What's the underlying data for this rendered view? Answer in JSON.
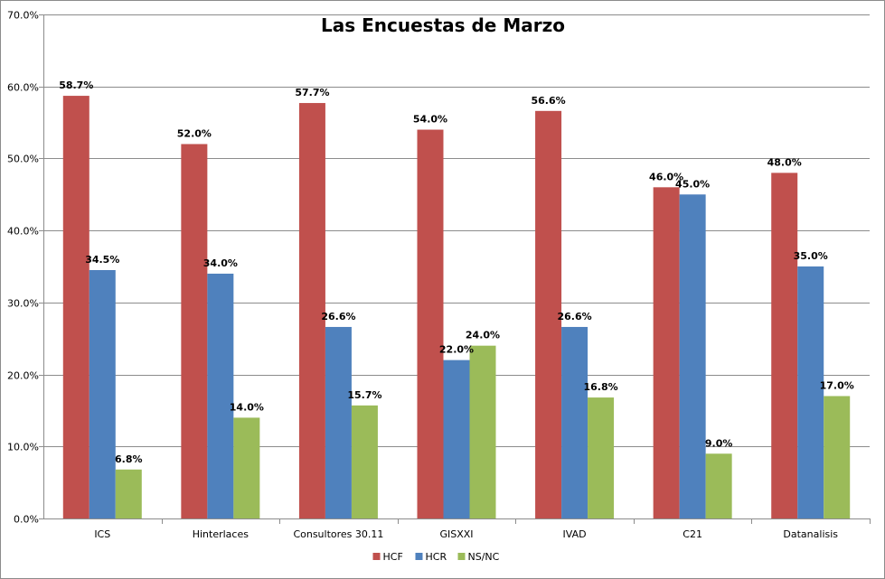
{
  "chart_data": {
    "type": "bar",
    "title": "Las Encuestas de Marzo",
    "xlabel": "",
    "ylabel": "",
    "ylim": [
      0,
      70
    ],
    "yticks": [
      0,
      10,
      20,
      30,
      40,
      50,
      60,
      70
    ],
    "ytick_labels": [
      "0.0%",
      "10.0%",
      "20.0%",
      "30.0%",
      "40.0%",
      "50.0%",
      "60.0%",
      "70.0%"
    ],
    "grid": true,
    "legend_position": "bottom",
    "categories": [
      "ICS",
      "Hinterlaces",
      "Consultores 30.11",
      "GISXXI",
      "IVAD",
      "C21",
      "Datanalisis"
    ],
    "series": [
      {
        "name": "HCF",
        "color": "#c0504d",
        "values": [
          58.7,
          52.0,
          57.7,
          54.0,
          56.6,
          46.0,
          48.0
        ],
        "labels": [
          "58.7%",
          "52.0%",
          "57.7%",
          "54.0%",
          "56.6%",
          "46.0%",
          "48.0%"
        ]
      },
      {
        "name": "HCR",
        "color": "#4f81bd",
        "values": [
          34.5,
          34.0,
          26.6,
          22.0,
          26.6,
          45.0,
          35.0
        ],
        "labels": [
          "34.5%",
          "34.0%",
          "26.6%",
          "22.0%",
          "26.6%",
          "45.0%",
          "35.0%"
        ]
      },
      {
        "name": "NS/NC",
        "color": "#9bbb59",
        "values": [
          6.8,
          14.0,
          15.7,
          24.0,
          16.8,
          9.0,
          17.0
        ],
        "labels": [
          "6.8%",
          "14.0%",
          "15.7%",
          "24.0%",
          "16.8%",
          "9.0%",
          "17.0%"
        ]
      }
    ]
  }
}
